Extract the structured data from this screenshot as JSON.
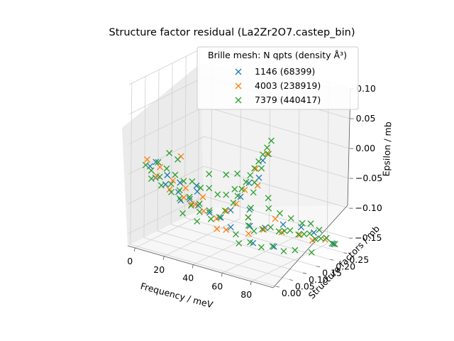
{
  "chart_data": {
    "type": "scatter",
    "projection": "3d",
    "title": "Structure factor residual (La2Zr2O7.castep_bin)",
    "xlabel": "Frequency / meV",
    "ylabel": "Structure factors / mb",
    "zlabel": "Epsilon / mb",
    "xlim": [
      -5,
      95
    ],
    "ylim": [
      -0.01,
      0.27
    ],
    "zlim": [
      -0.17,
      0.1
    ],
    "x_ticks": [
      "0",
      "20",
      "40",
      "60",
      "80"
    ],
    "y_ticks": [
      "0.00",
      "0.05",
      "0.10",
      "0.15",
      "0.20",
      "0.25"
    ],
    "z_ticks": [
      "0.10",
      "0.05",
      "0.00",
      "−0.05",
      "−0.10",
      "−0.15"
    ],
    "grid": true,
    "marker": "x",
    "legend": {
      "title": "Brille mesh: N qpts (density Å³)",
      "placement": "top-right"
    },
    "series": [
      {
        "name": "1146 (68399)",
        "color": "#1f77b4",
        "points": [
          [
            8,
            0.0,
            -0.03
          ],
          [
            10,
            0.01,
            -0.05
          ],
          [
            12,
            0.0,
            -0.02
          ],
          [
            15,
            0.02,
            -0.06
          ],
          [
            18,
            0.01,
            -0.04
          ],
          [
            22,
            0.03,
            -0.07
          ],
          [
            25,
            0.02,
            -0.05
          ],
          [
            28,
            0.04,
            -0.08
          ],
          [
            32,
            0.05,
            -0.09
          ],
          [
            35,
            0.03,
            -0.06
          ],
          [
            38,
            0.06,
            -0.1
          ],
          [
            42,
            0.08,
            -0.11
          ],
          [
            45,
            0.1,
            -0.1
          ],
          [
            48,
            0.12,
            -0.08
          ],
          [
            50,
            0.14,
            -0.06
          ],
          [
            52,
            0.18,
            -0.03
          ],
          [
            55,
            0.15,
            -0.05
          ],
          [
            58,
            0.1,
            -0.09
          ],
          [
            62,
            0.08,
            -0.11
          ],
          [
            65,
            0.12,
            -0.12
          ],
          [
            70,
            0.16,
            -0.12
          ],
          [
            75,
            0.2,
            -0.13
          ],
          [
            80,
            0.22,
            -0.14
          ],
          [
            85,
            0.24,
            -0.15
          ],
          [
            88,
            0.25,
            -0.16
          ],
          [
            60,
            0.02,
            -0.1
          ],
          [
            40,
            0.0,
            -0.04
          ],
          [
            20,
            0.05,
            -0.09
          ],
          [
            75,
            0.1,
            -0.14
          ],
          [
            68,
            0.06,
            -0.13
          ]
        ]
      },
      {
        "name": "4003 (238919)",
        "color": "#ff7f0e",
        "points": [
          [
            6,
            0.0,
            -0.02
          ],
          [
            9,
            0.02,
            -0.05
          ],
          [
            13,
            0.01,
            -0.03
          ],
          [
            16,
            0.03,
            -0.07
          ],
          [
            20,
            0.02,
            -0.05
          ],
          [
            24,
            0.04,
            -0.08
          ],
          [
            27,
            0.03,
            -0.06
          ],
          [
            30,
            0.05,
            -0.09
          ],
          [
            34,
            0.06,
            -0.1
          ],
          [
            37,
            0.04,
            -0.07
          ],
          [
            41,
            0.07,
            -0.11
          ],
          [
            44,
            0.09,
            -0.1
          ],
          [
            47,
            0.11,
            -0.09
          ],
          [
            49,
            0.13,
            -0.07
          ],
          [
            51,
            0.16,
            -0.04
          ],
          [
            53,
            0.19,
            -0.02
          ],
          [
            56,
            0.14,
            -0.06
          ],
          [
            59,
            0.09,
            -0.1
          ],
          [
            63,
            0.07,
            -0.12
          ],
          [
            66,
            0.11,
            -0.12
          ],
          [
            71,
            0.15,
            -0.13
          ],
          [
            76,
            0.19,
            -0.14
          ],
          [
            81,
            0.21,
            -0.15
          ],
          [
            86,
            0.23,
            -0.15
          ],
          [
            89,
            0.25,
            -0.16
          ],
          [
            18,
            0.06,
            -0.02
          ],
          [
            55,
            0.03,
            -0.11
          ],
          [
            33,
            0.02,
            -0.08
          ],
          [
            72,
            0.12,
            -0.1
          ],
          [
            45,
            0.05,
            -0.12
          ]
        ]
      },
      {
        "name": "7379 (440417)",
        "color": "#2ca02c",
        "points": [
          [
            5,
            0.0,
            -0.03
          ],
          [
            7,
            0.01,
            -0.04
          ],
          [
            9,
            0.0,
            -0.05
          ],
          [
            11,
            0.02,
            -0.05
          ],
          [
            14,
            0.01,
            -0.06
          ],
          [
            17,
            0.03,
            -0.06
          ],
          [
            19,
            0.02,
            -0.07
          ],
          [
            21,
            0.04,
            -0.07
          ],
          [
            23,
            0.03,
            -0.08
          ],
          [
            26,
            0.05,
            -0.08
          ],
          [
            29,
            0.04,
            -0.09
          ],
          [
            31,
            0.06,
            -0.09
          ],
          [
            33,
            0.05,
            -0.1
          ],
          [
            36,
            0.07,
            -0.1
          ],
          [
            39,
            0.06,
            -0.11
          ],
          [
            41,
            0.08,
            -0.11
          ],
          [
            43,
            0.09,
            -0.1
          ],
          [
            45,
            0.11,
            -0.09
          ],
          [
            46,
            0.12,
            -0.08
          ],
          [
            47,
            0.13,
            -0.07
          ],
          [
            48,
            0.14,
            -0.06
          ],
          [
            49,
            0.15,
            -0.05
          ],
          [
            50,
            0.16,
            -0.04
          ],
          [
            51,
            0.17,
            -0.03
          ],
          [
            52,
            0.18,
            -0.02
          ],
          [
            53,
            0.19,
            -0.01
          ],
          [
            54,
            0.2,
            0.0
          ],
          [
            54,
            0.19,
            -0.02
          ],
          [
            53,
            0.17,
            -0.04
          ],
          [
            52,
            0.15,
            -0.06
          ],
          [
            55,
            0.13,
            -0.07
          ],
          [
            57,
            0.11,
            -0.09
          ],
          [
            59,
            0.09,
            -0.1
          ],
          [
            61,
            0.08,
            -0.11
          ],
          [
            63,
            0.09,
            -0.12
          ],
          [
            65,
            0.11,
            -0.12
          ],
          [
            67,
            0.13,
            -0.12
          ],
          [
            69,
            0.15,
            -0.13
          ],
          [
            71,
            0.16,
            -0.13
          ],
          [
            73,
            0.17,
            -0.13
          ],
          [
            75,
            0.19,
            -0.14
          ],
          [
            77,
            0.2,
            -0.14
          ],
          [
            79,
            0.21,
            -0.14
          ],
          [
            81,
            0.22,
            -0.15
          ],
          [
            83,
            0.23,
            -0.15
          ],
          [
            85,
            0.24,
            -0.15
          ],
          [
            87,
            0.25,
            -0.16
          ],
          [
            89,
            0.25,
            -0.16
          ],
          [
            12,
            0.04,
            -0.04
          ],
          [
            16,
            0.05,
            -0.05
          ],
          [
            20,
            0.06,
            -0.06
          ],
          [
            24,
            0.07,
            -0.06
          ],
          [
            28,
            0.08,
            -0.07
          ],
          [
            32,
            0.09,
            -0.07
          ],
          [
            36,
            0.1,
            -0.08
          ],
          [
            40,
            0.11,
            -0.08
          ],
          [
            44,
            0.12,
            -0.07
          ],
          [
            8,
            0.03,
            -0.03
          ],
          [
            27,
            0.02,
            -0.1
          ],
          [
            35,
            0.03,
            -0.11
          ],
          [
            58,
            0.05,
            -0.12
          ],
          [
            62,
            0.04,
            -0.13
          ],
          [
            66,
            0.06,
            -0.13
          ],
          [
            70,
            0.08,
            -0.14
          ],
          [
            74,
            0.1,
            -0.14
          ],
          [
            78,
            0.12,
            -0.15
          ],
          [
            82,
            0.14,
            -0.15
          ],
          [
            86,
            0.18,
            -0.16
          ],
          [
            10,
            0.06,
            -0.02
          ],
          [
            14,
            0.07,
            -0.03
          ],
          [
            30,
            0.1,
            -0.05
          ],
          [
            38,
            0.12,
            -0.05
          ],
          [
            42,
            0.14,
            -0.05
          ],
          [
            56,
            0.18,
            -0.09
          ],
          [
            60,
            0.16,
            -0.1
          ],
          [
            64,
            0.18,
            -0.11
          ],
          [
            68,
            0.2,
            -0.12
          ],
          [
            72,
            0.22,
            -0.13
          ],
          [
            76,
            0.23,
            -0.13
          ],
          [
            80,
            0.24,
            -0.14
          ]
        ]
      }
    ]
  }
}
